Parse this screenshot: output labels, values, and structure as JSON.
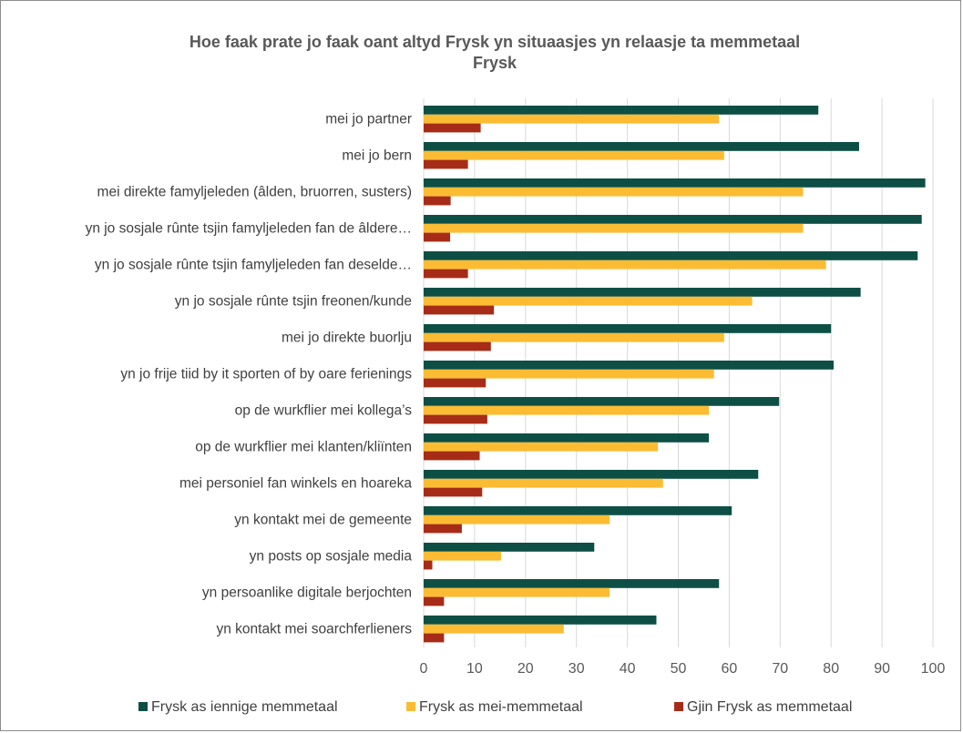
{
  "chart_data": {
    "type": "bar",
    "orientation": "horizontal",
    "title_line1": "Hoe faak prate jo faak oant altyd Frysk yn situaasjes yn relaasje ta memmetaal",
    "title_line2": "Frysk",
    "categories": [
      "mei jo partner",
      "mei jo bern",
      "mei direkte famyljeleden (âlden, bruorren, susters)",
      "yn jo sosjale rûnte tsjin famyljeleden fan de âldere…",
      "yn jo sosjale rûnte tsjin famyljeleden fan deselde…",
      "yn jo sosjale rûnte tsjin freonen/kunde",
      "mei jo direkte buorlju",
      "yn jo frije tiid by it sporten of by oare ferienings",
      "op de wurkflier mei kollega’s",
      "op de wurkflier mei klanten/kliïnten",
      "mei personiel fan winkels en hoareka",
      "yn kontakt mei de gemeente",
      "yn posts op sosjale media",
      "yn persoanlike digitale berjochten",
      "yn kontakt mei soarchferlieners"
    ],
    "series": [
      {
        "name": "Frysk as iennige memmetaal",
        "color": "#0d4f45",
        "values": [
          77.5,
          85.5,
          98.5,
          97.8,
          97,
          85.8,
          80,
          80.5,
          69.8,
          56,
          65.7,
          60.5,
          33.5,
          58,
          45.7
        ]
      },
      {
        "name": "Frysk as mei-memmetaal",
        "color": "#fbbc33",
        "values": [
          58,
          59,
          74.5,
          74.5,
          79,
          64.5,
          59,
          57,
          56,
          46,
          47,
          36.5,
          15.2,
          36.5,
          27.5
        ]
      },
      {
        "name": "Gjin Frysk as memmetaal",
        "color": "#a62c18",
        "values": [
          11.2,
          8.7,
          5.3,
          5.2,
          8.7,
          13.8,
          13.2,
          12.2,
          12.5,
          11,
          11.5,
          7.5,
          1.7,
          4,
          4
        ]
      }
    ],
    "xlim": [
      0,
      100
    ],
    "xticks": [
      0,
      10,
      20,
      30,
      40,
      50,
      60,
      70,
      80,
      90,
      100
    ],
    "grid": true,
    "legend_position": "bottom"
  }
}
